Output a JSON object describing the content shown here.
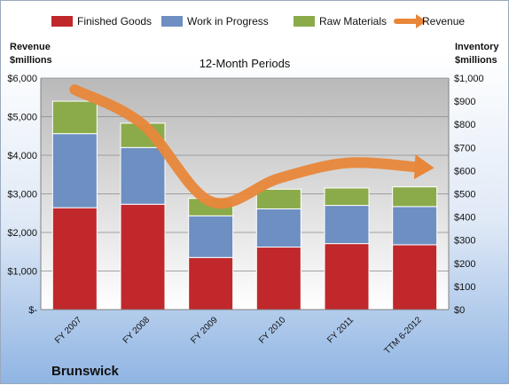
{
  "chart_data": {
    "type": "bar",
    "stacked": true,
    "subtitle": "12-Month Periods",
    "company": "Brunswick",
    "categories": [
      "FY 2007",
      "FY 2008",
      "FY 2009",
      "FY 2010",
      "FY 2011",
      "TTM 6-2012"
    ],
    "series": [
      {
        "name": "Finished Goods",
        "axis": "right",
        "values": [
          440,
          455,
          225,
          270,
          285,
          280
        ],
        "color": "#c0282c"
      },
      {
        "name": "Work in Progress",
        "axis": "right",
        "values": [
          320,
          245,
          180,
          165,
          165,
          165
        ],
        "color": "#6d8fc2"
      },
      {
        "name": "Raw Materials",
        "axis": "right",
        "values": [
          140,
          105,
          75,
          85,
          75,
          85
        ],
        "color": "#8bab4a"
      },
      {
        "name": "Revenue",
        "axis": "left",
        "type": "line",
        "values": [
          5700,
          4800,
          2800,
          3400,
          3800,
          3700
        ],
        "color": "#e8873a"
      }
    ],
    "left_axis": {
      "title_line1": "Revenue",
      "title_line2": "$millions",
      "ylim": [
        0,
        6000
      ],
      "ticks": [
        {
          "value": 0,
          "label": "$-"
        },
        {
          "value": 1000,
          "label": "$1,000"
        },
        {
          "value": 2000,
          "label": "$2,000"
        },
        {
          "value": 3000,
          "label": "$3,000"
        },
        {
          "value": 4000,
          "label": "$4,000"
        },
        {
          "value": 5000,
          "label": "$5,000"
        },
        {
          "value": 6000,
          "label": "$6,000"
        }
      ]
    },
    "right_axis": {
      "title_line1": "Inventory",
      "title_line2": "$millions",
      "ylim": [
        0,
        1000
      ],
      "ticks": [
        {
          "value": 0,
          "label": "$0"
        },
        {
          "value": 100,
          "label": "$100"
        },
        {
          "value": 200,
          "label": "$200"
        },
        {
          "value": 300,
          "label": "$300"
        },
        {
          "value": 400,
          "label": "$400"
        },
        {
          "value": 500,
          "label": "$500"
        },
        {
          "value": 600,
          "label": "$600"
        },
        {
          "value": 700,
          "label": "$700"
        },
        {
          "value": 800,
          "label": "$800"
        },
        {
          "value": 900,
          "label": "$900"
        },
        {
          "value": 1000,
          "label": "$1,000"
        }
      ]
    },
    "grid": true,
    "legend_position": "top"
  }
}
